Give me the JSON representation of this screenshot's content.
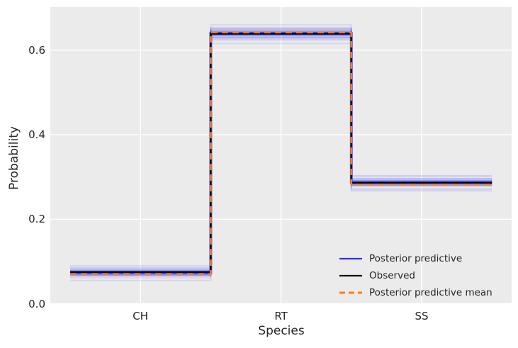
{
  "chart_data": {
    "type": "line",
    "subtype": "step",
    "title": "",
    "xlabel": "Species",
    "ylabel": "Probability",
    "categories": [
      "CH",
      "RT",
      "SS"
    ],
    "yticks": [
      0.0,
      0.2,
      0.4,
      0.6
    ],
    "ytick_labels": [
      "0.0",
      "0.2",
      "0.4",
      "0.6"
    ],
    "ylim": [
      0,
      0.702
    ],
    "grid": true,
    "plot_background": "#ebebeb",
    "gridline_color": "#ffffff",
    "text_color": "#262626",
    "series": [
      {
        "name": "Posterior predictive",
        "color": "#2a2eec",
        "style": "solid",
        "role": "samples",
        "samples": [
          [
            0.073,
            0.639,
            0.288
          ],
          [
            0.077,
            0.636,
            0.287
          ],
          [
            0.07,
            0.643,
            0.287
          ],
          [
            0.08,
            0.632,
            0.288
          ],
          [
            0.067,
            0.647,
            0.286
          ],
          [
            0.075,
            0.641,
            0.284
          ],
          [
            0.072,
            0.637,
            0.291
          ],
          [
            0.078,
            0.64,
            0.282
          ],
          [
            0.066,
            0.645,
            0.289
          ],
          [
            0.082,
            0.63,
            0.288
          ],
          [
            0.071,
            0.642,
            0.287
          ],
          [
            0.076,
            0.634,
            0.29
          ],
          [
            0.069,
            0.65,
            0.281
          ],
          [
            0.074,
            0.638,
            0.288
          ],
          [
            0.079,
            0.628,
            0.293
          ],
          [
            0.068,
            0.644,
            0.288
          ],
          [
            0.076,
            0.646,
            0.278
          ],
          [
            0.073,
            0.631,
            0.296
          ],
          [
            0.07,
            0.639,
            0.291
          ],
          [
            0.084,
            0.635,
            0.281
          ],
          [
            0.065,
            0.648,
            0.287
          ],
          [
            0.074,
            0.654,
            0.272
          ],
          [
            0.071,
            0.624,
            0.303
          ],
          [
            0.078,
            0.642,
            0.28
          ],
          [
            0.072,
            0.64,
            0.288
          ],
          [
            0.075,
            0.637,
            0.288
          ],
          [
            0.069,
            0.641,
            0.29
          ],
          [
            0.081,
            0.638,
            0.281
          ],
          [
            0.067,
            0.636,
            0.297
          ],
          [
            0.074,
            0.643,
            0.283
          ],
          [
            0.09,
            0.63,
            0.28
          ],
          [
            0.055,
            0.65,
            0.295
          ],
          [
            0.073,
            0.66,
            0.267
          ],
          [
            0.077,
            0.616,
            0.293
          ],
          [
            0.071,
            0.639,
            0.302
          ],
          [
            0.074,
            0.641,
            0.27
          ],
          [
            0.086,
            0.626,
            0.288
          ],
          [
            0.061,
            0.652,
            0.287
          ],
          [
            0.072,
            0.638,
            0.29
          ],
          [
            0.075,
            0.64,
            0.285
          ],
          [
            0.07,
            0.644,
            0.286
          ],
          [
            0.077,
            0.635,
            0.288
          ]
        ]
      },
      {
        "name": "Observed",
        "color": "#000000",
        "style": "solid",
        "role": "line",
        "values": [
          0.075,
          0.639,
          0.286
        ]
      },
      {
        "name": "Posterior predictive mean",
        "color": "#ff7f0e",
        "style": "dashed",
        "role": "line",
        "values": [
          0.07,
          0.642,
          0.282
        ]
      }
    ],
    "legend": {
      "position": "lower right",
      "items": [
        {
          "label": "Posterior predictive",
          "color": "#2a2eec",
          "style": "solid"
        },
        {
          "label": "Observed",
          "color": "#000000",
          "style": "solid"
        },
        {
          "label": "Posterior predictive mean",
          "color": "#ff7f0e",
          "style": "dashed"
        }
      ]
    }
  }
}
